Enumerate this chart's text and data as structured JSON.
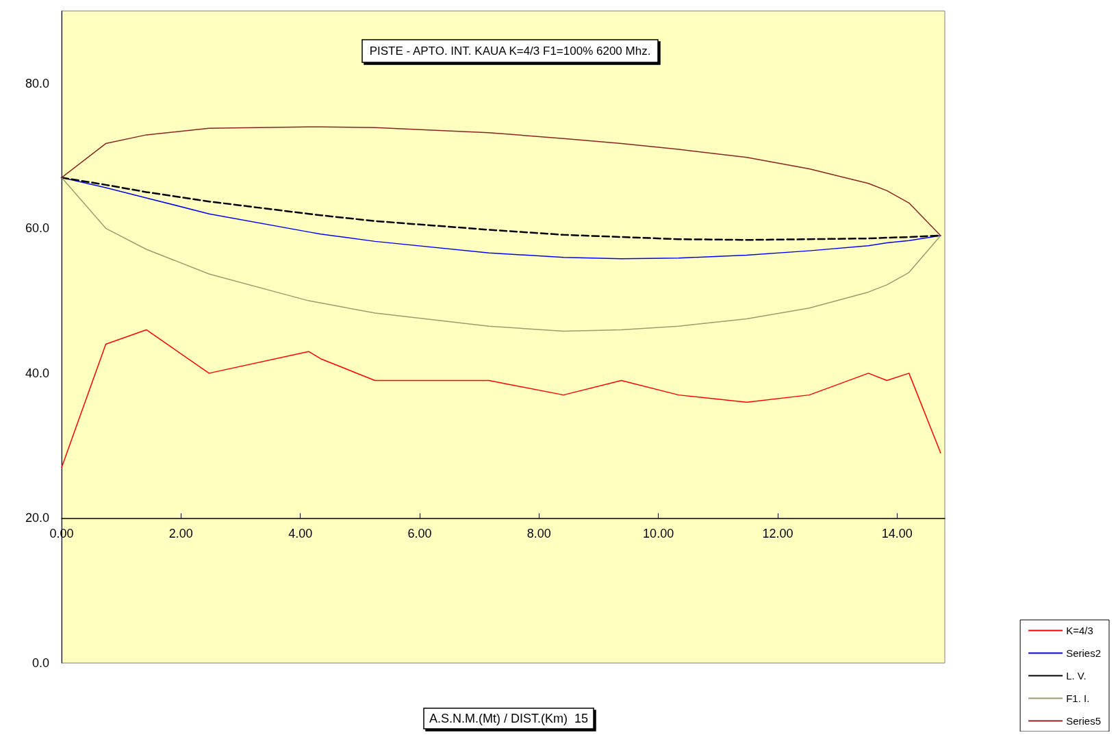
{
  "chart_data": {
    "type": "line",
    "title": "PISTE - APTO. INT. KAUA K=4/3 F1=100% 6200 Mhz.",
    "xlabel": "A.S.N.M.(Mt) / DIST.(Km)  15",
    "x": [
      0,
      0.74,
      1.42,
      2.47,
      4.14,
      4.34,
      5.25,
      7.16,
      8.41,
      9.38,
      10.34,
      11.48,
      12.53,
      13.52,
      13.83,
      14.2,
      14.73
    ],
    "series": [
      {
        "name": "K=4/3",
        "color": "#ff0000",
        "values": [
          27,
          44,
          46,
          40,
          43,
          42,
          39,
          39,
          37,
          39,
          37,
          36,
          37,
          40,
          39,
          40,
          29
        ]
      },
      {
        "name": "Series2",
        "color": "#0000ff",
        "values": [
          67,
          65.6,
          64.2,
          62,
          59.5,
          59.2,
          58.2,
          56.6,
          56,
          55.8,
          55.9,
          56.3,
          56.9,
          57.6,
          58,
          58.3,
          59
        ]
      },
      {
        "name": "L. V.",
        "color": "#000000",
        "line_style": "dashed",
        "values": [
          67,
          66,
          65,
          63.7,
          62,
          61.8,
          61,
          59.8,
          59.1,
          58.8,
          58.5,
          58.4,
          58.5,
          58.6,
          58.7,
          58.8,
          59
        ]
      },
      {
        "name": "F1. I.",
        "color": "#9c9c6c",
        "values": [
          67,
          60,
          57.1,
          53.7,
          50,
          49.7,
          48.3,
          46.5,
          45.8,
          46,
          46.5,
          47.5,
          49,
          51.2,
          52.2,
          53.9,
          59
        ]
      },
      {
        "name": "Series5",
        "color": "#8b2323",
        "values": [
          67,
          71.7,
          72.9,
          73.8,
          74,
          74,
          73.9,
          73.2,
          72.4,
          71.7,
          70.9,
          69.8,
          68.2,
          66.2,
          65.2,
          63.5,
          59
        ]
      }
    ],
    "xlim": [
      0,
      14.8
    ],
    "xticks": [
      {
        "value": 0,
        "label": "0.00"
      },
      {
        "value": 2,
        "label": "2.00"
      },
      {
        "value": 4,
        "label": "4.00"
      },
      {
        "value": 6,
        "label": "6.00"
      },
      {
        "value": 8,
        "label": "8.00"
      },
      {
        "value": 10,
        "label": "10.00"
      },
      {
        "value": 12,
        "label": "12.00"
      },
      {
        "value": 14,
        "label": "14.00"
      }
    ],
    "ylim": [
      0,
      90
    ],
    "yticks": [
      {
        "value": 0,
        "label": "0.0"
      },
      {
        "value": 20,
        "label": "20.0"
      },
      {
        "value": 40,
        "label": "40.0"
      },
      {
        "value": 60,
        "label": "60.0"
      },
      {
        "value": 80,
        "label": "80.0"
      }
    ],
    "grid": false,
    "legend": "bottom right",
    "marker": "none",
    "line_style": "solid"
  }
}
